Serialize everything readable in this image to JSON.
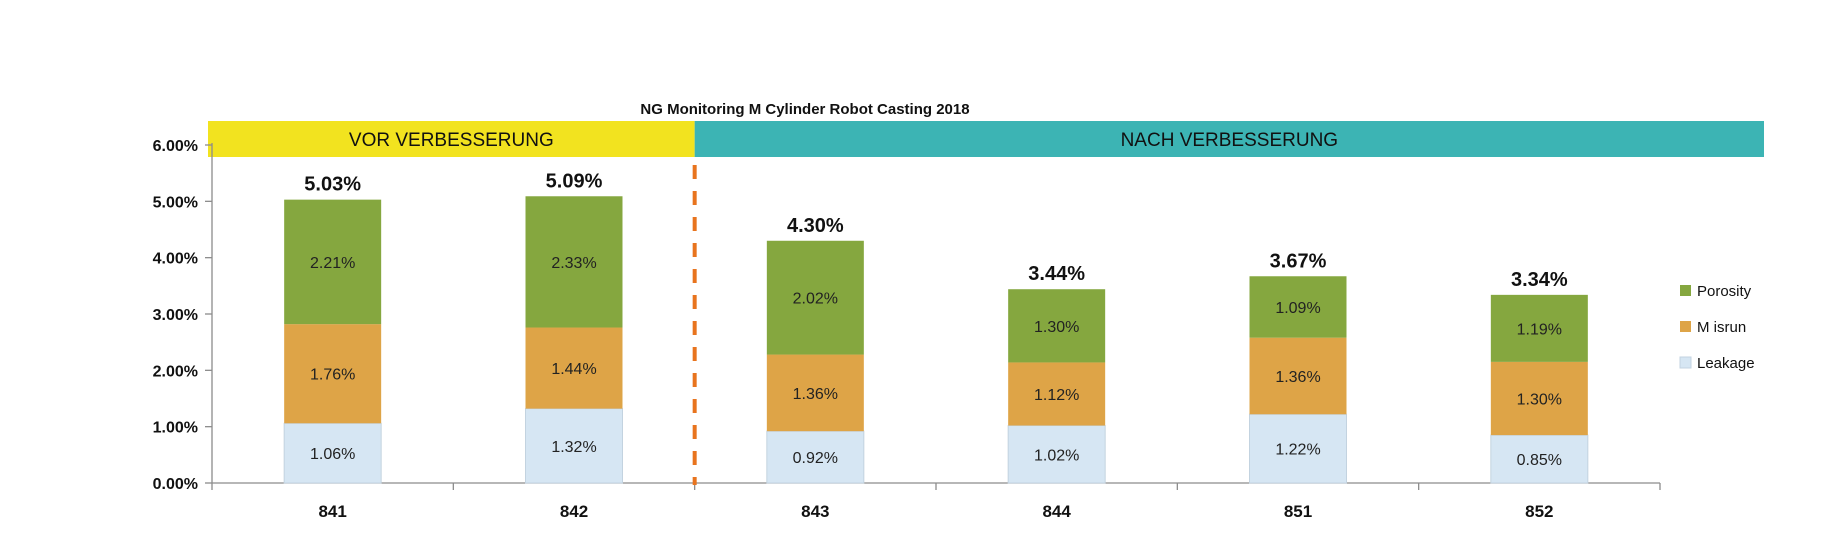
{
  "chart_data": {
    "type": "bar",
    "stacked": true,
    "title": "NG  Monitoring M  Cylinder  Robot Casting 2018",
    "categories": [
      "841",
      "842",
      "843",
      "844",
      "851",
      "852"
    ],
    "series": [
      {
        "name": "Leakage",
        "color": "#d6e6f3",
        "values": [
          1.06,
          1.32,
          0.92,
          1.02,
          1.22,
          0.85
        ],
        "labels": [
          "1.06%",
          "1.32%",
          "0.92%",
          "1.02%",
          "1.22%",
          "0.85%"
        ]
      },
      {
        "name": "Misrun",
        "color": "#dea447",
        "values": [
          1.76,
          1.44,
          1.36,
          1.12,
          1.36,
          1.3
        ],
        "labels": [
          "1.76%",
          "1.44%",
          "1.36%",
          "1.12%",
          "1.36%",
          "1.30%"
        ]
      },
      {
        "name": "Porosity",
        "color": "#85a73f",
        "values": [
          2.21,
          2.33,
          2.02,
          1.3,
          1.09,
          1.19
        ],
        "labels": [
          "2.21%",
          "2.33%",
          "2.02%",
          "1.30%",
          "1.09%",
          "1.19%"
        ]
      }
    ],
    "totals": [
      5.03,
      5.09,
      4.3,
      3.44,
      3.67,
      3.34
    ],
    "total_labels": [
      "5.03%",
      "5.09%",
      "4.30%",
      "3.44%",
      "3.67%",
      "3.34%"
    ],
    "legend": [
      "Porosity",
      "Misrun",
      "Leakage"
    ],
    "legend_labels": [
      "Porosity",
      "M isrun",
      "Leakage"
    ],
    "ylim": [
      0,
      6
    ],
    "yticks": [
      0,
      1,
      2,
      3,
      4,
      5,
      6
    ],
    "ytick_labels": [
      "0.00%",
      "1.00%",
      "2.00%",
      "3.00%",
      "4.00%",
      "5.00%",
      "6.00%"
    ],
    "xlabel": "",
    "ylabel": "",
    "grid": false,
    "divider_between": [
      "842",
      "843"
    ],
    "phases": [
      {
        "label": "VOR VERBESSERUNG",
        "color": "#f2e31f",
        "from": "841",
        "to": "842"
      },
      {
        "label": "NACH VERBESSERUNG",
        "color": "#3cb4b4",
        "from": "843",
        "to": "852"
      }
    ],
    "divider_color": "#e8741e"
  }
}
